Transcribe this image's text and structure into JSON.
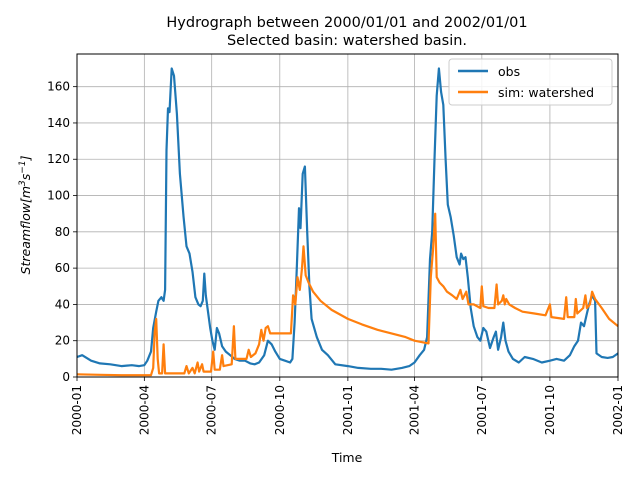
{
  "chart_data": {
    "type": "line",
    "title": "Hydrograph between 2000/01/01 and 2002/01/01",
    "subtitle": "Selected basin: watershed basin.",
    "xlabel": "Time",
    "ylabel_main": "Streamflow[m",
    "ylabel_sup1": "3",
    "ylabel_mid": "s",
    "ylabel_sup2": "−1",
    "ylabel_end": "]",
    "xlim": [
      "2000-01-01",
      "2002-01-01"
    ],
    "ylim": [
      0,
      178
    ],
    "grid": true,
    "legend_position": "top-right",
    "x_ticks": [
      {
        "date": "2000-01-01",
        "label": "2000-01"
      },
      {
        "date": "2000-04-01",
        "label": "2000-04"
      },
      {
        "date": "2000-07-01",
        "label": "2000-07"
      },
      {
        "date": "2000-10-01",
        "label": "2000-10"
      },
      {
        "date": "2001-01-01",
        "label": "2001-01"
      },
      {
        "date": "2001-04-01",
        "label": "2001-04"
      },
      {
        "date": "2001-07-01",
        "label": "2001-07"
      },
      {
        "date": "2001-10-01",
        "label": "2001-10"
      },
      {
        "date": "2002-01-01",
        "label": "2002-01"
      }
    ],
    "y_ticks": [
      0,
      20,
      40,
      60,
      80,
      100,
      120,
      140,
      160
    ],
    "series": [
      {
        "name": "obs",
        "color": "#1f77b4",
        "points": [
          [
            "2000-01-01",
            11
          ],
          [
            "2000-01-08",
            12
          ],
          [
            "2000-01-20",
            9
          ],
          [
            "2000-02-01",
            7.5
          ],
          [
            "2000-02-15",
            7
          ],
          [
            "2000-03-01",
            6
          ],
          [
            "2000-03-15",
            6.5
          ],
          [
            "2000-03-25",
            6
          ],
          [
            "2000-04-01",
            6.5
          ],
          [
            "2000-04-05",
            9
          ],
          [
            "2000-04-10",
            14
          ],
          [
            "2000-04-13",
            27
          ],
          [
            "2000-04-17",
            36
          ],
          [
            "2000-04-20",
            42
          ],
          [
            "2000-04-24",
            44
          ],
          [
            "2000-04-27",
            42
          ],
          [
            "2000-04-29",
            48
          ],
          [
            "2000-05-01",
            125
          ],
          [
            "2000-05-03",
            148
          ],
          [
            "2000-05-05",
            146
          ],
          [
            "2000-05-08",
            170
          ],
          [
            "2000-05-11",
            166
          ],
          [
            "2000-05-15",
            145
          ],
          [
            "2000-05-19",
            112
          ],
          [
            "2000-05-24",
            88
          ],
          [
            "2000-05-28",
            72
          ],
          [
            "2000-06-01",
            68
          ],
          [
            "2000-06-05",
            58
          ],
          [
            "2000-06-09",
            44
          ],
          [
            "2000-06-13",
            40
          ],
          [
            "2000-06-16",
            39
          ],
          [
            "2000-06-19",
            42
          ],
          [
            "2000-06-21",
            57
          ],
          [
            "2000-06-23",
            45
          ],
          [
            "2000-06-26",
            36
          ],
          [
            "2000-06-29",
            27
          ],
          [
            "2000-07-02",
            20
          ],
          [
            "2000-07-05",
            15
          ],
          [
            "2000-07-08",
            27
          ],
          [
            "2000-07-11",
            24
          ],
          [
            "2000-07-15",
            17
          ],
          [
            "2000-07-20",
            14
          ],
          [
            "2000-07-26",
            12
          ],
          [
            "2000-08-01",
            10
          ],
          [
            "2000-08-08",
            9
          ],
          [
            "2000-08-15",
            9
          ],
          [
            "2000-08-22",
            7.5
          ],
          [
            "2000-08-28",
            7
          ],
          [
            "2000-09-03",
            8
          ],
          [
            "2000-09-10",
            12
          ],
          [
            "2000-09-15",
            20
          ],
          [
            "2000-09-20",
            18
          ],
          [
            "2000-09-25",
            14
          ],
          [
            "2000-10-01",
            10
          ],
          [
            "2000-10-08",
            9
          ],
          [
            "2000-10-15",
            8
          ],
          [
            "2000-10-18",
            10
          ],
          [
            "2000-10-21",
            30
          ],
          [
            "2000-10-24",
            60
          ],
          [
            "2000-10-27",
            93
          ],
          [
            "2000-10-29",
            82
          ],
          [
            "2000-11-01",
            112
          ],
          [
            "2000-11-04",
            116
          ],
          [
            "2000-11-07",
            80
          ],
          [
            "2000-11-10",
            50
          ],
          [
            "2000-11-13",
            32
          ],
          [
            "2000-11-20",
            22
          ],
          [
            "2000-11-27",
            15
          ],
          [
            "2000-12-05",
            12
          ],
          [
            "2000-12-15",
            7
          ],
          [
            "2001-01-01",
            6
          ],
          [
            "2001-01-15",
            5
          ],
          [
            "2001-02-01",
            4.5
          ],
          [
            "2001-02-15",
            4.5
          ],
          [
            "2001-03-01",
            4
          ],
          [
            "2001-03-15",
            5
          ],
          [
            "2001-03-25",
            6
          ],
          [
            "2001-04-01",
            8
          ],
          [
            "2001-04-08",
            12
          ],
          [
            "2001-04-14",
            15
          ],
          [
            "2001-04-18",
            22
          ],
          [
            "2001-04-22",
            65
          ],
          [
            "2001-04-25",
            80
          ],
          [
            "2001-04-28",
            120
          ],
          [
            "2001-05-01",
            155
          ],
          [
            "2001-05-04",
            170
          ],
          [
            "2001-05-07",
            157
          ],
          [
            "2001-05-10",
            150
          ],
          [
            "2001-05-13",
            120
          ],
          [
            "2001-05-16",
            95
          ],
          [
            "2001-05-20",
            88
          ],
          [
            "2001-05-24",
            78
          ],
          [
            "2001-05-28",
            66
          ],
          [
            "2001-06-01",
            62
          ],
          [
            "2001-06-03",
            68
          ],
          [
            "2001-06-06",
            65
          ],
          [
            "2001-06-09",
            66
          ],
          [
            "2001-06-12",
            55
          ],
          [
            "2001-06-16",
            38
          ],
          [
            "2001-06-20",
            28
          ],
          [
            "2001-06-25",
            22
          ],
          [
            "2001-06-29",
            20
          ],
          [
            "2001-07-03",
            27
          ],
          [
            "2001-07-07",
            25
          ],
          [
            "2001-07-12",
            16
          ],
          [
            "2001-07-17",
            22
          ],
          [
            "2001-07-20",
            25
          ],
          [
            "2001-07-23",
            15
          ],
          [
            "2001-07-27",
            22
          ],
          [
            "2001-07-30",
            30
          ],
          [
            "2001-08-02",
            20
          ],
          [
            "2001-08-06",
            14
          ],
          [
            "2001-08-12",
            10
          ],
          [
            "2001-08-20",
            8
          ],
          [
            "2001-08-28",
            11
          ],
          [
            "2001-09-08",
            10
          ],
          [
            "2001-09-20",
            8
          ],
          [
            "2001-10-01",
            9
          ],
          [
            "2001-10-10",
            10
          ],
          [
            "2001-10-20",
            9
          ],
          [
            "2001-10-28",
            12
          ],
          [
            "2001-11-03",
            17
          ],
          [
            "2001-11-08",
            20
          ],
          [
            "2001-11-12",
            30
          ],
          [
            "2001-11-16",
            28
          ],
          [
            "2001-11-20",
            35
          ],
          [
            "2001-11-23",
            40
          ],
          [
            "2001-11-27",
            45
          ],
          [
            "2001-12-01",
            42
          ],
          [
            "2001-12-03",
            13
          ],
          [
            "2001-12-10",
            11
          ],
          [
            "2001-12-18",
            10.5
          ],
          [
            "2001-12-25",
            11
          ],
          [
            "2002-01-01",
            13
          ]
        ]
      },
      {
        "name": "sim: watershed",
        "color": "#ff7f0e",
        "points": [
          [
            "2000-01-01",
            1.5
          ],
          [
            "2000-02-01",
            1.2
          ],
          [
            "2000-03-01",
            1
          ],
          [
            "2000-04-01",
            1
          ],
          [
            "2000-04-10",
            1
          ],
          [
            "2000-04-13",
            5
          ],
          [
            "2000-04-15",
            25
          ],
          [
            "2000-04-17",
            32
          ],
          [
            "2000-04-19",
            10
          ],
          [
            "2000-04-21",
            2
          ],
          [
            "2000-04-25",
            2
          ],
          [
            "2000-04-27",
            18
          ],
          [
            "2000-04-29",
            2
          ],
          [
            "2000-05-01",
            2
          ],
          [
            "2000-05-25",
            2
          ],
          [
            "2000-05-28",
            6
          ],
          [
            "2000-05-31",
            2
          ],
          [
            "2000-06-05",
            5
          ],
          [
            "2000-06-08",
            2
          ],
          [
            "2000-06-12",
            8
          ],
          [
            "2000-06-14",
            3
          ],
          [
            "2000-06-18",
            7
          ],
          [
            "2000-06-20",
            3
          ],
          [
            "2000-06-30",
            3
          ],
          [
            "2000-07-03",
            14
          ],
          [
            "2000-07-05",
            4
          ],
          [
            "2000-07-12",
            4
          ],
          [
            "2000-07-15",
            12
          ],
          [
            "2000-07-17",
            6
          ],
          [
            "2000-07-28",
            7
          ],
          [
            "2000-07-31",
            28
          ],
          [
            "2000-08-02",
            10
          ],
          [
            "2000-08-10",
            10
          ],
          [
            "2000-08-17",
            10
          ],
          [
            "2000-08-20",
            15
          ],
          [
            "2000-08-23",
            11
          ],
          [
            "2000-08-29",
            13
          ],
          [
            "2000-09-03",
            18
          ],
          [
            "2000-09-06",
            26
          ],
          [
            "2000-09-09",
            20
          ],
          [
            "2000-09-12",
            27
          ],
          [
            "2000-09-15",
            28
          ],
          [
            "2000-09-18",
            24
          ],
          [
            "2000-10-01",
            24
          ],
          [
            "2000-10-13",
            24
          ],
          [
            "2000-10-16",
            24
          ],
          [
            "2000-10-19",
            45
          ],
          [
            "2000-10-22",
            40
          ],
          [
            "2000-10-25",
            55
          ],
          [
            "2000-10-28",
            48
          ],
          [
            "2000-10-31",
            60
          ],
          [
            "2000-11-02",
            72
          ],
          [
            "2000-11-05",
            56
          ],
          [
            "2000-11-09",
            52
          ],
          [
            "2000-11-15",
            47
          ],
          [
            "2000-11-25",
            42
          ],
          [
            "2000-12-10",
            37
          ],
          [
            "2001-01-01",
            32
          ],
          [
            "2001-01-20",
            29
          ],
          [
            "2001-02-10",
            26
          ],
          [
            "2001-03-01",
            24
          ],
          [
            "2001-03-20",
            22
          ],
          [
            "2001-04-01",
            20
          ],
          [
            "2001-04-20",
            18.5
          ],
          [
            "2001-04-23",
            55
          ],
          [
            "2001-04-26",
            70
          ],
          [
            "2001-04-29",
            90
          ],
          [
            "2001-05-01",
            55
          ],
          [
            "2001-05-05",
            52
          ],
          [
            "2001-05-10",
            50
          ],
          [
            "2001-05-15",
            47
          ],
          [
            "2001-05-22",
            45
          ],
          [
            "2001-05-28",
            43
          ],
          [
            "2001-06-02",
            48
          ],
          [
            "2001-06-05",
            43
          ],
          [
            "2001-06-10",
            47
          ],
          [
            "2001-06-13",
            40
          ],
          [
            "2001-06-20",
            40
          ],
          [
            "2001-06-29",
            38
          ],
          [
            "2001-07-01",
            50
          ],
          [
            "2001-07-03",
            39
          ],
          [
            "2001-07-10",
            38
          ],
          [
            "2001-07-18",
            38
          ],
          [
            "2001-07-21",
            51
          ],
          [
            "2001-07-23",
            40
          ],
          [
            "2001-07-28",
            42
          ],
          [
            "2001-07-30",
            45
          ],
          [
            "2001-08-01",
            40
          ],
          [
            "2001-08-03",
            43
          ],
          [
            "2001-08-07",
            40
          ],
          [
            "2001-08-15",
            38
          ],
          [
            "2001-08-25",
            36
          ],
          [
            "2001-09-10",
            35
          ],
          [
            "2001-09-25",
            34
          ],
          [
            "2001-10-01",
            40
          ],
          [
            "2001-10-03",
            33
          ],
          [
            "2001-10-20",
            32
          ],
          [
            "2001-10-23",
            44
          ],
          [
            "2001-10-25",
            33
          ],
          [
            "2001-11-03",
            33
          ],
          [
            "2001-11-05",
            43
          ],
          [
            "2001-11-07",
            35
          ],
          [
            "2001-11-15",
            38
          ],
          [
            "2001-11-18",
            45
          ],
          [
            "2001-11-20",
            38
          ],
          [
            "2001-11-24",
            40
          ],
          [
            "2001-11-27",
            47
          ],
          [
            "2001-12-01",
            43
          ],
          [
            "2001-12-10",
            38
          ],
          [
            "2001-12-20",
            32
          ],
          [
            "2002-01-01",
            28
          ]
        ]
      }
    ]
  }
}
